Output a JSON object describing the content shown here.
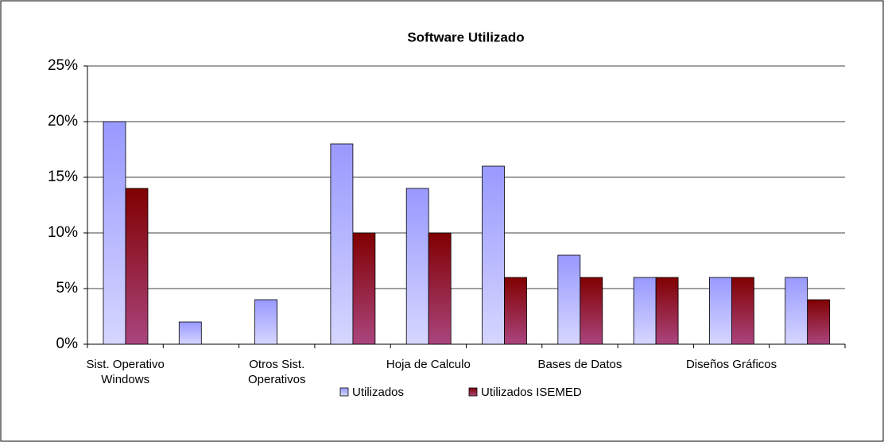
{
  "chart_data": {
    "type": "bar",
    "title": "Software Utilizado",
    "categories": [
      "Sist. Operativo Windows",
      null,
      "Otros Sist. Operativos",
      null,
      "Hoja de Calculo",
      null,
      "Bases de Datos",
      null,
      "Diseños Gráficos",
      null
    ],
    "series": [
      {
        "name": "Utilizados",
        "color": "#9999ff",
        "values": [
          20,
          2,
          4,
          18,
          14,
          16,
          8,
          6,
          6,
          6
        ]
      },
      {
        "name": "Utilizados ISEMED",
        "color": "#800000",
        "values": [
          14,
          0,
          0,
          10,
          10,
          6,
          6,
          6,
          6,
          4
        ]
      }
    ],
    "ylim": [
      0,
      25
    ],
    "yticks": [
      {
        "value": 0,
        "label": "0%"
      },
      {
        "value": 5,
        "label": "5%"
      },
      {
        "value": 10,
        "label": "10%"
      },
      {
        "value": 15,
        "label": "15%"
      },
      {
        "value": 20,
        "label": "20%"
      },
      {
        "value": 25,
        "label": "25%"
      }
    ],
    "grid": true,
    "legend": "bottom"
  }
}
